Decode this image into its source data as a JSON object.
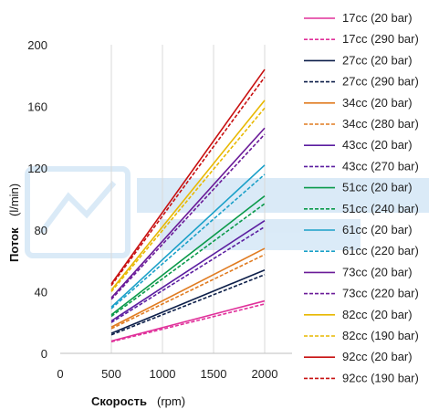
{
  "chart_data": {
    "type": "line",
    "xlabel": "Скорость",
    "xlabel_unit": "(rpm)",
    "ylabel": "Поток",
    "ylabel_unit": "(l/min)",
    "xlim": [
      0,
      2000
    ],
    "ylim": [
      0,
      200
    ],
    "x_ticks": [
      0,
      500,
      1000,
      1500,
      2000
    ],
    "y_ticks": [
      0,
      40,
      80,
      120,
      160,
      200
    ],
    "grid": "vertical",
    "legend_position": "right",
    "x": [
      500,
      2000
    ],
    "series": [
      {
        "name": "17cc (20 bar)",
        "color": "#e0309a",
        "style": "solid",
        "values": [
          8,
          34
        ]
      },
      {
        "name": "17cc (290 bar)",
        "color": "#e0309a",
        "style": "dashed",
        "values": [
          7.5,
          32
        ]
      },
      {
        "name": "27cc (20 bar)",
        "color": "#0d1f4a",
        "style": "solid",
        "values": [
          13,
          54
        ]
      },
      {
        "name": "27cc (290 bar)",
        "color": "#0d1f4a",
        "style": "dashed",
        "values": [
          12,
          51
        ]
      },
      {
        "name": "34cc (20 bar)",
        "color": "#e07b20",
        "style": "solid",
        "values": [
          17,
          68
        ]
      },
      {
        "name": "34cc (280 bar)",
        "color": "#e07b20",
        "style": "dashed",
        "values": [
          16,
          64
        ]
      },
      {
        "name": "43cc (20 bar)",
        "color": "#5b1ea0",
        "style": "solid",
        "values": [
          21,
          86
        ]
      },
      {
        "name": "43cc (270 bar)",
        "color": "#5b1ea0",
        "style": "dashed",
        "values": [
          20,
          82
        ]
      },
      {
        "name": "51cc (20 bar)",
        "color": "#0a9a4a",
        "style": "solid",
        "values": [
          25,
          102
        ]
      },
      {
        "name": "51cc (240 bar)",
        "color": "#0a9a4a",
        "style": "dashed",
        "values": [
          24,
          97
        ]
      },
      {
        "name": "61cc (20 bar)",
        "color": "#1aa0c8",
        "style": "solid",
        "values": [
          30,
          122
        ]
      },
      {
        "name": "61cc (220 bar)",
        "color": "#1aa0c8",
        "style": "dashed",
        "values": [
          29,
          116
        ]
      },
      {
        "name": "73cc (20 bar)",
        "color": "#6a1a98",
        "style": "solid",
        "values": [
          36,
          146
        ]
      },
      {
        "name": "73cc (220 bar)",
        "color": "#6a1a98",
        "style": "dashed",
        "values": [
          35,
          142
        ]
      },
      {
        "name": "82cc (20 bar)",
        "color": "#e8b800",
        "style": "solid",
        "values": [
          41,
          164
        ]
      },
      {
        "name": "82cc (190 bar)",
        "color": "#e8b800",
        "style": "dashed",
        "values": [
          40,
          159
        ]
      },
      {
        "name": "92cc (20 bar)",
        "color": "#c81010",
        "style": "solid",
        "values": [
          45,
          184
        ]
      },
      {
        "name": "92cc (190 bar)",
        "color": "#c81010",
        "style": "dashed",
        "values": [
          44,
          179
        ]
      }
    ]
  }
}
